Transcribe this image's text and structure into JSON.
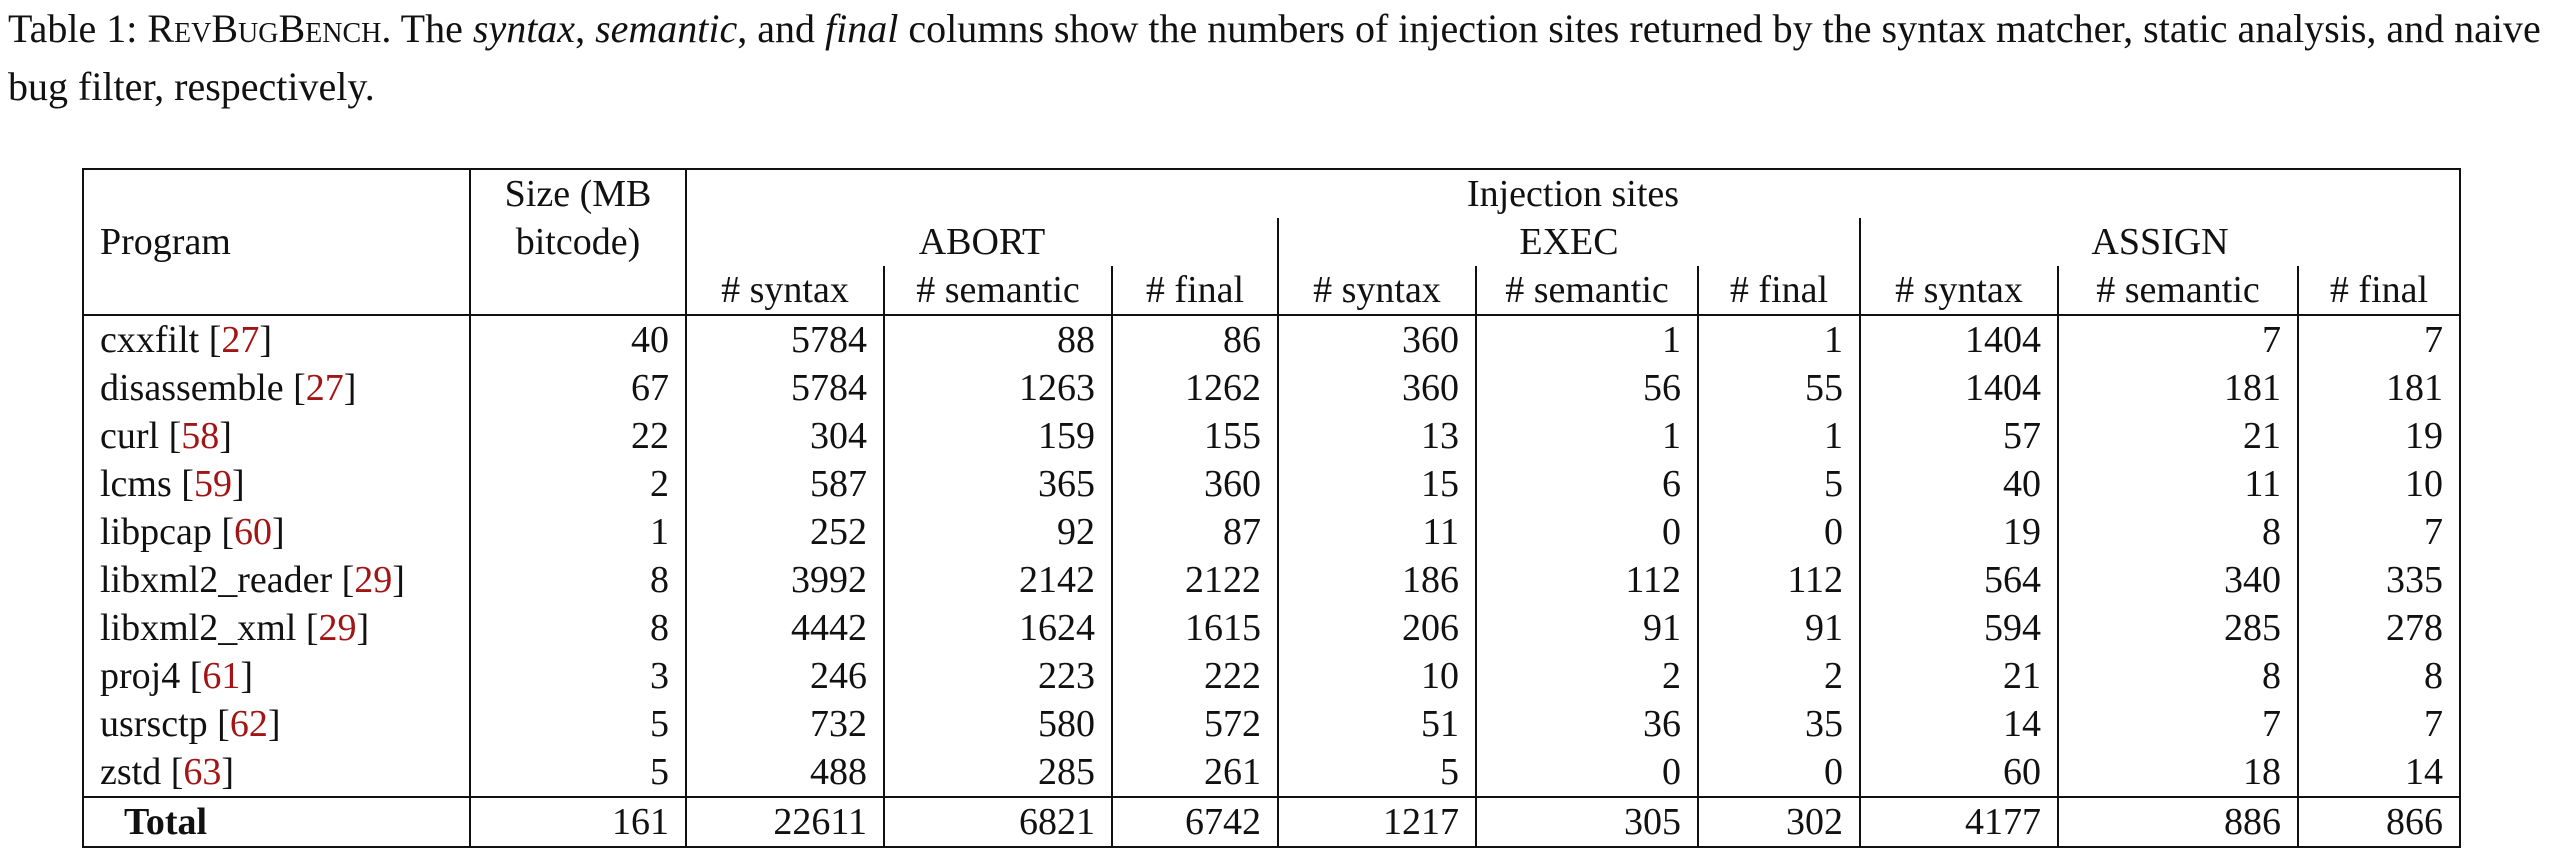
{
  "caption": {
    "label": "Table 1: ",
    "name_prefix": "R",
    "name_rest": "EV",
    "name_b": "B",
    "name_rest2": "UG",
    "name_b2": "B",
    "name_rest3": "ENCH",
    "after_name": ". The ",
    "em1": "syntax",
    "sep1": ", ",
    "em2": "semantic",
    "sep2": ", and ",
    "em3": "final",
    "rest": " columns show the numbers of injection sites returned by the syntax matcher, static analysis, and naive bug filter, respectively."
  },
  "header": {
    "program": "Program",
    "size": "Size (MB bitcode)",
    "size_line1": "Size (MB",
    "size_line2": "bitcode)",
    "injection_sites": "Injection sites",
    "groups": [
      "ABORT",
      "EXEC",
      "ASSIGN"
    ],
    "subcols": [
      "# syntax",
      "# semantic",
      "# final"
    ]
  },
  "rows": [
    {
      "name": "cxxfilt",
      "cite": "27",
      "size": "40",
      "vals": [
        "5784",
        "88",
        "86",
        "360",
        "1",
        "1",
        "1404",
        "7",
        "7"
      ]
    },
    {
      "name": "disassemble",
      "cite": "27",
      "size": "67",
      "vals": [
        "5784",
        "1263",
        "1262",
        "360",
        "56",
        "55",
        "1404",
        "181",
        "181"
      ]
    },
    {
      "name": "curl",
      "cite": "58",
      "size": "22",
      "vals": [
        "304",
        "159",
        "155",
        "13",
        "1",
        "1",
        "57",
        "21",
        "19"
      ]
    },
    {
      "name": "lcms",
      "cite": "59",
      "size": "2",
      "vals": [
        "587",
        "365",
        "360",
        "15",
        "6",
        "5",
        "40",
        "11",
        "10"
      ]
    },
    {
      "name": "libpcap",
      "cite": "60",
      "size": "1",
      "vals": [
        "252",
        "92",
        "87",
        "11",
        "0",
        "0",
        "19",
        "8",
        "7"
      ]
    },
    {
      "name": "libxml2_reader",
      "cite": "29",
      "size": "8",
      "vals": [
        "3992",
        "2142",
        "2122",
        "186",
        "112",
        "112",
        "564",
        "340",
        "335"
      ]
    },
    {
      "name": "libxml2_xml",
      "cite": "29",
      "size": "8",
      "vals": [
        "4442",
        "1624",
        "1615",
        "206",
        "91",
        "91",
        "594",
        "285",
        "278"
      ]
    },
    {
      "name": "proj4",
      "cite": "61",
      "size": "3",
      "vals": [
        "246",
        "223",
        "222",
        "10",
        "2",
        "2",
        "21",
        "8",
        "8"
      ]
    },
    {
      "name": "usrsctp",
      "cite": "62",
      "size": "5",
      "vals": [
        "732",
        "580",
        "572",
        "51",
        "36",
        "35",
        "14",
        "7",
        "7"
      ]
    },
    {
      "name": "zstd",
      "cite": "63",
      "size": "5",
      "vals": [
        "488",
        "285",
        "261",
        "5",
        "0",
        "0",
        "60",
        "18",
        "14"
      ]
    }
  ],
  "total": {
    "name": "Total",
    "size": "161",
    "vals": [
      "22611",
      "6821",
      "6742",
      "1217",
      "305",
      "302",
      "4177",
      "886",
      "866"
    ]
  }
}
